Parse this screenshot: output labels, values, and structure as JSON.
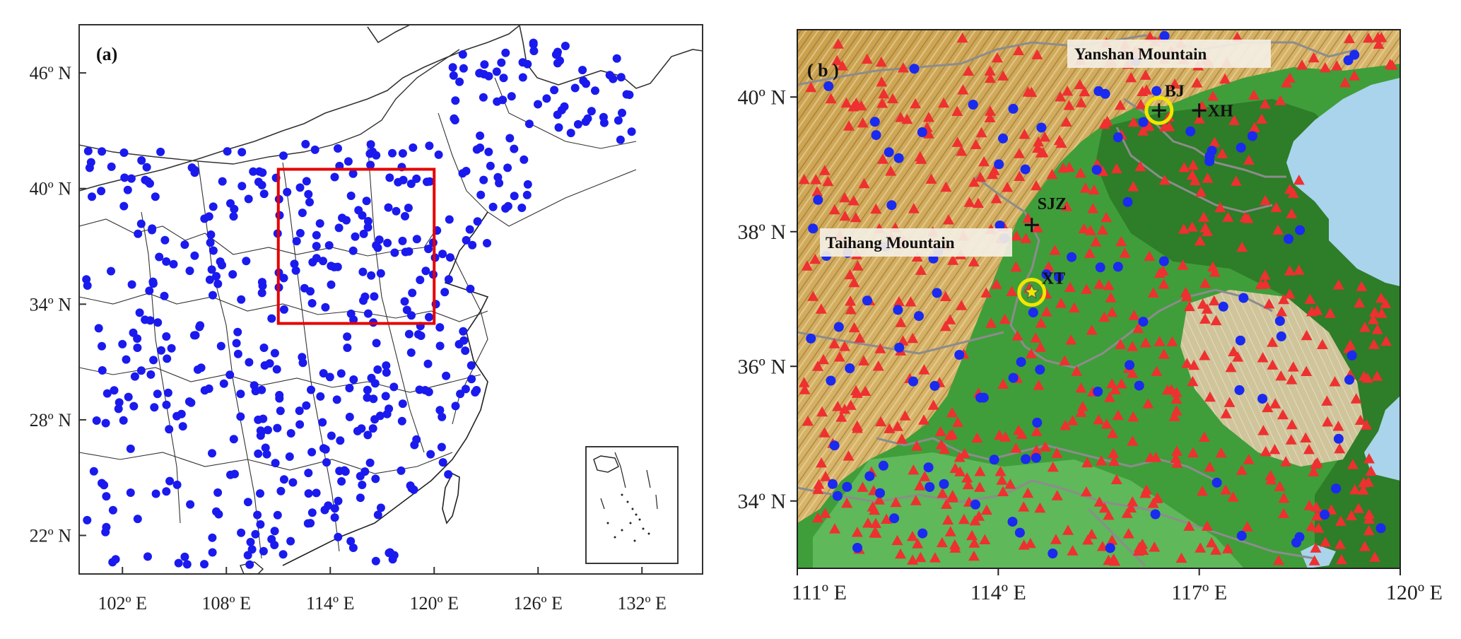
{
  "panel_a": {
    "label": "(a)",
    "x_ticks": [
      "102º E",
      "108º E",
      "114º E",
      "120º E",
      "126º E",
      "132º E"
    ],
    "y_ticks": [
      "46º  N",
      "40º  N",
      "34º  N",
      "28º  N",
      "22º  N"
    ],
    "x_range_deg": [
      99.5,
      135.5
    ],
    "y_range_deg": [
      20.0,
      48.5
    ],
    "station_color": "#1a1aee",
    "box_color": "#e60000",
    "study_box": {
      "lon": [
        111.0,
        120.0
      ],
      "lat": [
        33.0,
        41.0
      ]
    }
  },
  "panel_b": {
    "label": "( b )",
    "x_ticks": [
      "111º E",
      "114º E",
      "117º E",
      "120º E"
    ],
    "y_ticks": [
      "40º N",
      "38º N",
      "36º N",
      "34º N"
    ],
    "x_range_deg": [
      111.0,
      120.0
    ],
    "y_range_deg": [
      33.0,
      41.0
    ],
    "mountain_labels": [
      "Yanshan Mountain",
      "Taihang Mountain"
    ],
    "sites": [
      {
        "name": "BJ",
        "lon": 116.4,
        "lat": 39.8,
        "marker": "circle-cross"
      },
      {
        "name": "XH",
        "lon": 117.0,
        "lat": 39.8,
        "marker": "cross"
      },
      {
        "name": "SJZ",
        "lon": 114.5,
        "lat": 38.1,
        "marker": "cross"
      },
      {
        "name": "XT",
        "lon": 114.5,
        "lat": 37.1,
        "marker": "circle-star"
      }
    ],
    "triangle_color": "#ee3030",
    "dot_color": "#1a2aee",
    "site_ring_color": "#f2e600",
    "terrain_colors": {
      "plain": "#3f9e3a",
      "low_hill": "#7fb55a",
      "mountain": "#c9a050",
      "peak": "#e8d6a8",
      "sea": "#a9d4ec"
    }
  }
}
